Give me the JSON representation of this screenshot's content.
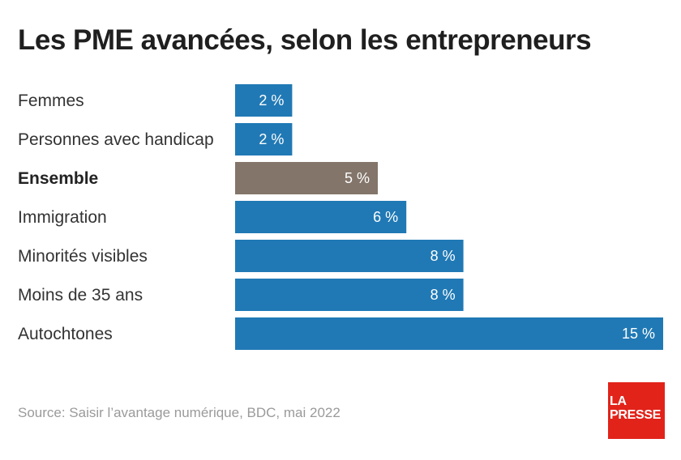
{
  "header": {
    "title": "Les PME avancées, selon les entrepreneurs"
  },
  "colors": {
    "bar": "#2079b5",
    "highlight": "#83756a"
  },
  "chart_data": {
    "type": "bar",
    "orientation": "horizontal",
    "title": "Les PME avancées, selon les entrepreneurs",
    "categories": [
      "Femmes",
      "Personnes avec handicap",
      "Ensemble",
      "Immigration",
      "Minorités visibles",
      "Moins de 35 ans",
      "Autochtones"
    ],
    "values": [
      2,
      2,
      5,
      6,
      8,
      8,
      15
    ],
    "value_labels": [
      "2 %",
      "2 %",
      "5 %",
      "6 %",
      "8 %",
      "8 %",
      "15 %"
    ],
    "highlight_category": "Ensemble",
    "xlim": [
      0,
      15
    ],
    "grid": false,
    "legend": "none"
  },
  "footer": {
    "source": "Source: Saisir l’avantage numérique, BDC, mai 2022",
    "logo_line1": "LA",
    "logo_line2": "PRESSE"
  }
}
